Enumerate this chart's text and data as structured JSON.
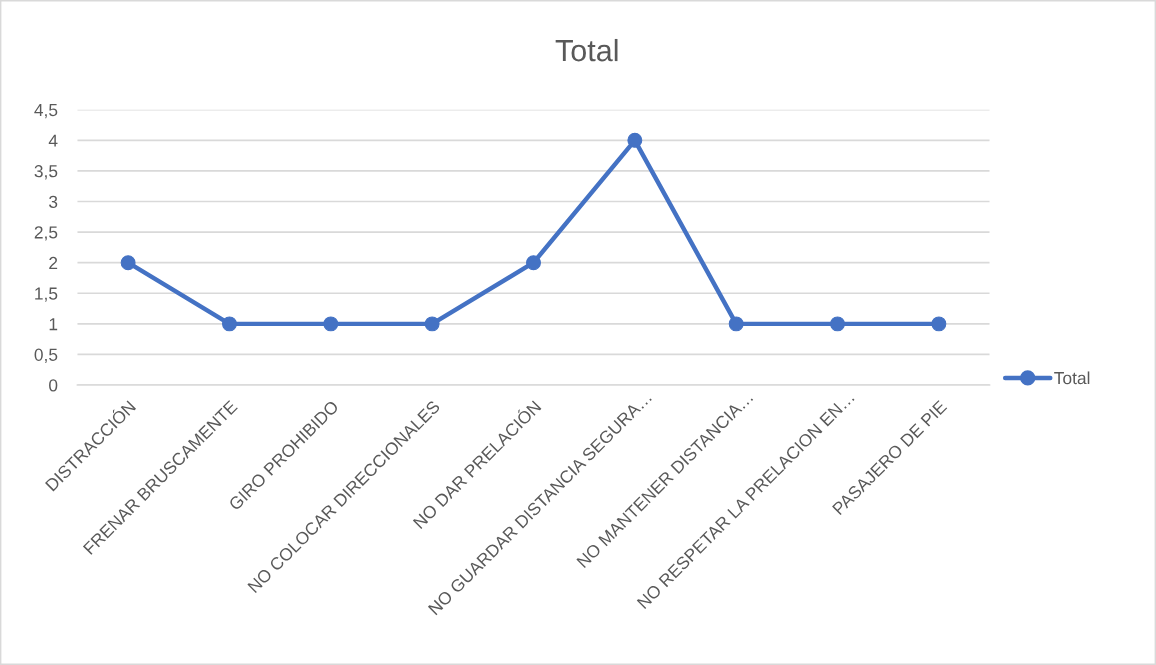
{
  "chart_data": {
    "type": "line",
    "title": "Total",
    "categories": [
      "DISTRACCIÓN",
      "FRENAR BRUSCAMENTE",
      "GIRO PROHIBIDO",
      "NO COLOCAR DIRECCIONALES",
      "NO DAR PRELACIÓN",
      "NO GUARDAR DISTANCIA SEGURA…",
      "NO MANTENER DISTANCIA…",
      "NO RESPETAR LA PRELACION EN…",
      "PASAJERO DE PIE"
    ],
    "series": [
      {
        "name": "Total",
        "color": "#4472c4",
        "values": [
          2,
          1,
          1,
          1,
          2,
          4,
          1,
          1,
          1
        ]
      }
    ],
    "ylim": [
      0,
      4.5
    ],
    "yticks": [
      0,
      {
        "value": 0.5,
        "label": "0,5"
      },
      1,
      {
        "value": 1.5,
        "label": "1,5"
      },
      2,
      {
        "value": 2.5,
        "label": "2,5"
      },
      3,
      {
        "value": 3.5,
        "label": "3,5"
      },
      4,
      {
        "value": 4.5,
        "label": "4,5"
      }
    ],
    "grid": "y",
    "legend": "right",
    "marker": "circle",
    "line_style": "solid"
  }
}
